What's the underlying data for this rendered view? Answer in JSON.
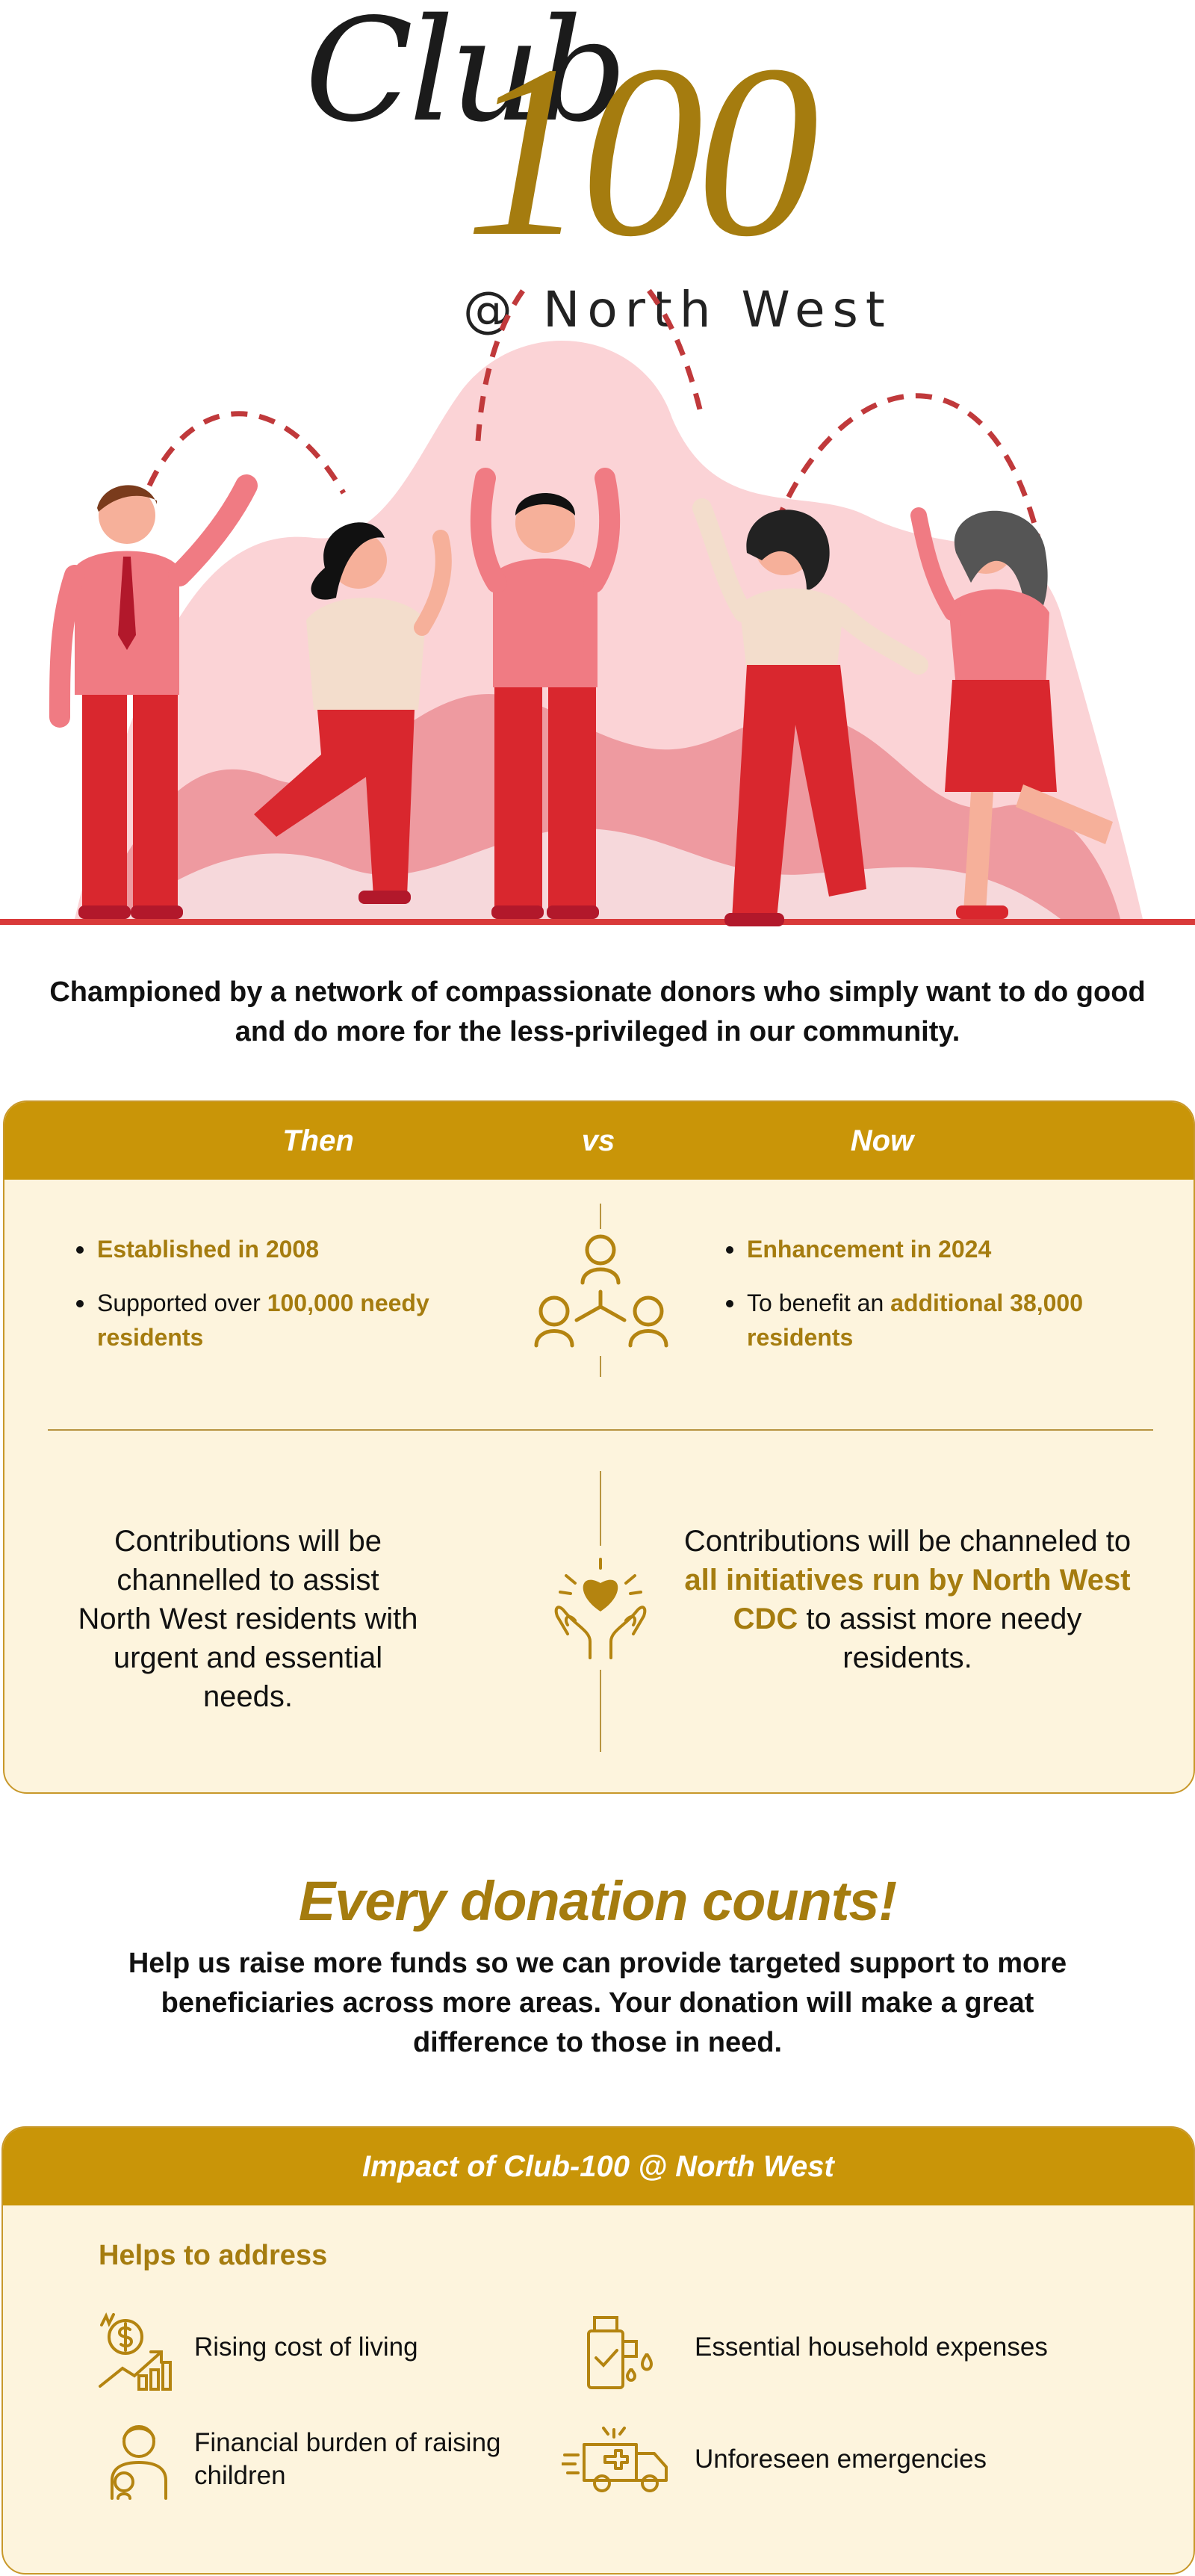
{
  "logo": {
    "club": "Club",
    "hundred": "100",
    "subtitle": "@ North West"
  },
  "intro": "Championed by a network of compassionate donors who simply want to do good and do more for the less-privileged in our community.",
  "compare": {
    "then_label": "Then",
    "vs_label": "vs",
    "now_label": "Now",
    "then": {
      "b1": "Established in 2008",
      "b2_pre": "Supported over ",
      "b2_hl": "100,000 needy residents"
    },
    "now": {
      "b1": "Enhancement in 2024",
      "b2_pre": "To benefit an ",
      "b2_hl": "additional 38,000 residents"
    },
    "then_desc": "Contributions will be channelled to assist North West residents with urgent and essential needs.",
    "now_desc_pre": "Contributions will be channeled to ",
    "now_desc_hl": "all initiatives run by North West CDC",
    "now_desc_post": " to assist more needy residents."
  },
  "donation": {
    "title": "Every donation counts!",
    "text": "Help us raise more funds so we can provide targeted support to more beneficiaries across more areas. Your donation will make a great difference to those in need."
  },
  "impact": {
    "title": "Impact of Club-100 @ North West",
    "helps": "Helps to address",
    "items": [
      {
        "label": "Rising cost of living",
        "icon": "cost-rising-icon"
      },
      {
        "label": "Essential household expenses",
        "icon": "household-icon"
      },
      {
        "label": "Financial burden of raising children",
        "icon": "child-care-icon"
      },
      {
        "label": "Unforeseen emergencies",
        "icon": "ambulance-icon"
      }
    ]
  },
  "colors": {
    "gold": "#c99508",
    "gold_text": "#a57c0f",
    "cream": "#fdf4dd",
    "red": "#d93a3a",
    "pink": "#f28d94"
  }
}
